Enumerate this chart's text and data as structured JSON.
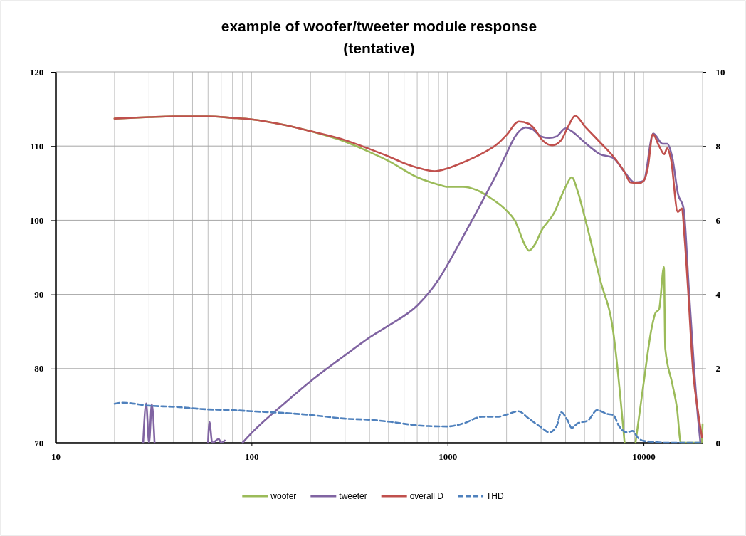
{
  "chart_data": {
    "type": "line",
    "title": "example of woofer/tweeter module response\n(tentative)",
    "log": "x",
    "grid": true,
    "legend": "bottom",
    "xlim": [
      10,
      20000
    ],
    "xticks": [
      10,
      100,
      1000,
      10000
    ],
    "ylim": [
      70,
      120
    ],
    "yticks": [
      70,
      80,
      90,
      100,
      110,
      120
    ],
    "y2lim": [
      0,
      10
    ],
    "y2ticks": [
      0,
      2,
      4,
      6,
      8,
      10
    ],
    "series": [
      {
        "name": "woofer",
        "color": "#9bbb59",
        "x": [
          20,
          30,
          40,
          60,
          80,
          100,
          150,
          200,
          300,
          400,
          500,
          700,
          900,
          1000,
          1200,
          1400,
          1700,
          2000,
          2200,
          2500,
          2600,
          2800,
          3000,
          3500,
          4000,
          4300,
          4600,
          5000,
          6000,
          7000,
          8000,
          8500,
          9100,
          10000,
          11000,
          11500,
          12000,
          12700,
          12900,
          14000,
          14800,
          15500,
          19800,
          20000
        ],
        "values": [
          113.7,
          113.9,
          114.0,
          114.0,
          113.8,
          113.6,
          112.8,
          112.0,
          110.6,
          109.2,
          108.0,
          105.8,
          104.8,
          104.5,
          104.5,
          104.1,
          102.8,
          101.3,
          100.0,
          96.5,
          95.9,
          96.8,
          98.5,
          101.0,
          104.5,
          105.8,
          104.0,
          100.5,
          92.0,
          85.0,
          70.0,
          null,
          70.0,
          78.0,
          85.5,
          87.5,
          88.0,
          93.7,
          82.7,
          78.0,
          74.7,
          70.0,
          70.0,
          72.5
        ]
      },
      {
        "name": "tweeter",
        "color": "#8064a2",
        "x": [
          28,
          29,
          30,
          31,
          32,
          45,
          60,
          61,
          63,
          68,
          70,
          73,
          80,
          90,
          100,
          150,
          200,
          300,
          400,
          500,
          700,
          900,
          1000,
          1200,
          1500,
          1800,
          2000,
          2200,
          2500,
          2700,
          3000,
          3300,
          3600,
          4000,
          4400,
          5000,
          6000,
          7000,
          8000,
          9000,
          10000,
          11200,
          12500,
          13200,
          14000,
          15000,
          16000,
          17000,
          18000,
          19000,
          19500
        ],
        "values": [
          70.0,
          75.3,
          70.0,
          75.2,
          70.0,
          null,
          70.0,
          72.8,
          70.0,
          70.5,
          70.0,
          70.3,
          null,
          70.0,
          71.3,
          75.5,
          78.3,
          81.8,
          84.2,
          85.8,
          88.5,
          92.0,
          94.0,
          97.8,
          102.5,
          106.5,
          109.0,
          111.2,
          112.5,
          112.3,
          111.3,
          111.1,
          111.3,
          112.4,
          111.8,
          110.5,
          108.9,
          108.4,
          106.5,
          105.1,
          105.3,
          111.7,
          110.3,
          110.3,
          108.5,
          103.5,
          101.6,
          91.0,
          81.0,
          73.0,
          70.0
        ]
      },
      {
        "name": "overall D",
        "color": "#c0504d",
        "x": [
          20,
          30,
          40,
          60,
          80,
          100,
          150,
          200,
          300,
          400,
          500,
          600,
          700,
          860,
          1000,
          1200,
          1500,
          1800,
          2000,
          2310,
          2600,
          2800,
          3000,
          3420,
          3800,
          4100,
          4480,
          5000,
          6000,
          7000,
          8000,
          8570,
          9500,
          10000,
          10500,
          11150,
          12000,
          12740,
          13200,
          13800,
          14950,
          15680,
          16200,
          16870,
          17900,
          19000,
          19870
        ],
        "values": [
          113.7,
          113.9,
          114.0,
          114.0,
          113.8,
          113.6,
          112.8,
          112.0,
          110.8,
          109.6,
          108.6,
          107.7,
          107.1,
          106.6,
          107.0,
          107.8,
          109.0,
          110.3,
          111.5,
          113.3,
          113.0,
          112.2,
          111.0,
          110.1,
          110.8,
          112.5,
          114.1,
          112.7,
          110.5,
          108.6,
          106.5,
          105.1,
          105.0,
          105.3,
          107.0,
          111.6,
          110.0,
          108.9,
          109.7,
          108.2,
          101.1,
          101.6,
          97.5,
          90.6,
          79.5,
          74.0,
          70.7
        ]
      },
      {
        "name": "THD",
        "color": "#4f81bd",
        "axis": "y2",
        "line_style": "dashed",
        "x": [
          20,
          22,
          30,
          40,
          60,
          80,
          100,
          150,
          200,
          300,
          400,
          500,
          700,
          800,
          1000,
          1200,
          1500,
          1800,
          2000,
          2300,
          2600,
          3000,
          3300,
          3600,
          3800,
          4100,
          4300,
          4600,
          5200,
          5800,
          6500,
          7000,
          7500,
          8200,
          8800,
          9300,
          10000,
          11000,
          13000,
          20000
        ],
        "values": [
          1.05,
          1.08,
          1.0,
          0.97,
          0.9,
          0.88,
          0.85,
          0.8,
          0.75,
          0.65,
          0.62,
          0.57,
          0.47,
          0.45,
          0.44,
          0.52,
          0.7,
          0.7,
          0.76,
          0.85,
          0.65,
          0.42,
          0.28,
          0.45,
          0.82,
          0.6,
          0.4,
          0.52,
          0.6,
          0.88,
          0.78,
          0.75,
          0.45,
          0.28,
          0.32,
          0.15,
          0.05,
          0.03,
          0.0,
          0.0
        ]
      }
    ]
  }
}
